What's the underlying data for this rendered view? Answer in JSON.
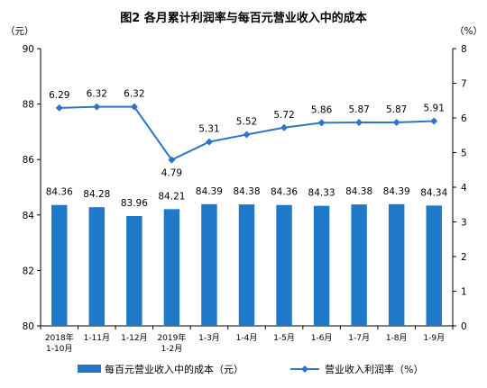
{
  "chart_data": {
    "type": "bar",
    "title": "图2  各月累计利润率与每百元营业收入中的成本",
    "left_unit": "（元）",
    "right_unit": "（%）",
    "categories": [
      [
        "2018年",
        "1-10月"
      ],
      [
        "1-11月"
      ],
      [
        "1-12月"
      ],
      [
        "2019年",
        "1-2月"
      ],
      [
        "1-3月"
      ],
      [
        "1-4月"
      ],
      [
        "1-5月"
      ],
      [
        "1-6月"
      ],
      [
        "1-7月"
      ],
      [
        "1-8月"
      ],
      [
        "1-9月"
      ]
    ],
    "series": [
      {
        "name": "每百元营业收入中的成本（元）",
        "type": "bar",
        "axis": "left",
        "color": "#1f78c8",
        "values": [
          84.36,
          84.28,
          83.96,
          84.21,
          84.39,
          84.38,
          84.36,
          84.33,
          84.38,
          84.39,
          84.34
        ],
        "labels": [
          "84.36",
          "84.28",
          "83.96",
          "84.21",
          "84.39",
          "84.38",
          "84.36",
          "84.33",
          "84.38",
          "84.39",
          "84.34"
        ]
      },
      {
        "name": "营业收入利润率（%）",
        "type": "line",
        "axis": "right",
        "color": "#2e75c7",
        "values": [
          6.29,
          6.32,
          6.32,
          4.79,
          5.31,
          5.52,
          5.72,
          5.86,
          5.87,
          5.87,
          5.91
        ],
        "labels": [
          "6.29",
          "6.32",
          "6.32",
          "4.79",
          "5.31",
          "5.52",
          "5.72",
          "5.86",
          "5.87",
          "5.87",
          "5.91"
        ]
      }
    ],
    "y_left": {
      "min": 80,
      "max": 90,
      "ticks": [
        "80",
        "82",
        "84",
        "86",
        "88",
        "90"
      ]
    },
    "y_right": {
      "min": 0,
      "max": 8,
      "ticks": [
        "0",
        "1",
        "2",
        "3",
        "4",
        "5",
        "6",
        "7",
        "8"
      ]
    },
    "grid": false,
    "legend_position": "bottom"
  }
}
